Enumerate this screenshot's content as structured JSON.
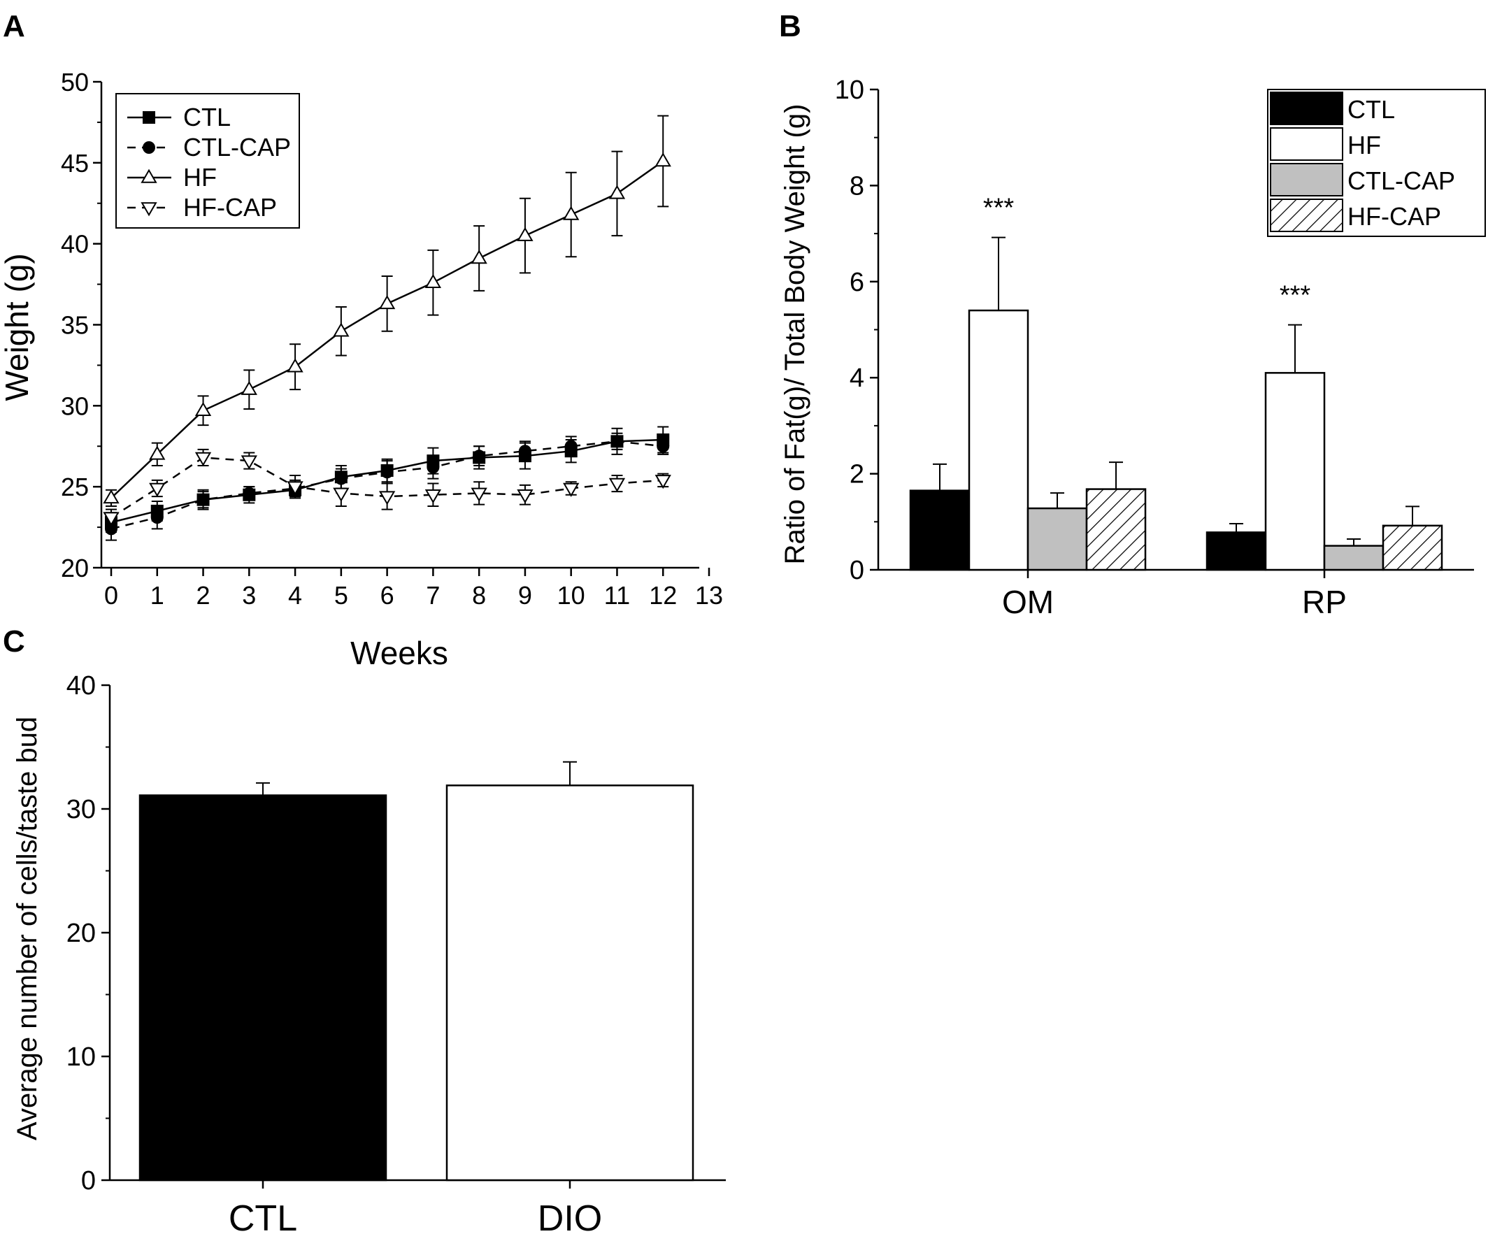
{
  "panels": [
    {
      "letter": "A"
    },
    {
      "letter": "B"
    },
    {
      "letter": "C"
    }
  ],
  "chart_data": [
    {
      "panel": "A",
      "type": "line",
      "xlabel": "Weeks",
      "ylabel": "Weight (g)",
      "xlim": [
        0,
        13
      ],
      "ylim": [
        20,
        50
      ],
      "x_ticks": [
        0,
        1,
        2,
        3,
        4,
        5,
        6,
        7,
        8,
        9,
        10,
        11,
        12,
        13
      ],
      "y_ticks": [
        20,
        25,
        30,
        35,
        40,
        45,
        50
      ],
      "legend_position": "top-left",
      "x": [
        0,
        1,
        2,
        3,
        4,
        5,
        6,
        7,
        8,
        9,
        10,
        11,
        12
      ],
      "series": [
        {
          "name": "CTL",
          "line": "solid",
          "marker": "filled-square",
          "values": [
            22.8,
            23.5,
            24.2,
            24.5,
            24.8,
            25.6,
            26.0,
            26.6,
            26.8,
            26.9,
            27.2,
            27.8,
            27.9
          ],
          "errors": [
            0.6,
            0.6,
            0.6,
            0.5,
            0.5,
            0.7,
            0.7,
            0.8,
            0.7,
            0.8,
            0.7,
            0.8,
            0.8
          ]
        },
        {
          "name": "CTL-CAP",
          "line": "dashed",
          "marker": "filled-circle",
          "values": [
            22.4,
            23.1,
            24.2,
            24.6,
            24.9,
            25.5,
            25.9,
            26.2,
            26.9,
            27.2,
            27.5,
            27.8,
            27.5
          ],
          "errors": [
            0.7,
            0.7,
            0.5,
            0.4,
            0.5,
            0.6,
            0.7,
            0.7,
            0.6,
            0.6,
            0.6,
            0.5,
            0.5
          ]
        },
        {
          "name": "HF",
          "line": "solid",
          "marker": "open-triangle-up",
          "values": [
            24.3,
            27.0,
            29.7,
            31.0,
            32.4,
            34.6,
            36.3,
            37.6,
            39.1,
            40.5,
            41.8,
            43.1,
            45.1
          ],
          "errors": [
            0.5,
            0.7,
            0.9,
            1.2,
            1.4,
            1.5,
            1.7,
            2.0,
            2.0,
            2.3,
            2.6,
            2.6,
            2.8
          ]
        },
        {
          "name": "HF-CAP",
          "line": "dashed",
          "marker": "open-triangle-down",
          "values": [
            23.1,
            24.9,
            26.8,
            26.6,
            25.0,
            24.6,
            24.4,
            24.5,
            24.6,
            24.5,
            24.9,
            25.2,
            25.4
          ],
          "errors": [
            0.5,
            0.5,
            0.5,
            0.5,
            0.7,
            0.8,
            0.8,
            0.7,
            0.7,
            0.6,
            0.4,
            0.5,
            0.4
          ]
        }
      ]
    },
    {
      "panel": "B",
      "type": "bar",
      "xlabel": "",
      "ylabel": "Ratio of Fat(g)/ Total Body Weight (g)",
      "ylim": [
        0,
        10
      ],
      "y_ticks": [
        0,
        2,
        4,
        6,
        8,
        10
      ],
      "categories": [
        "OM",
        "RP"
      ],
      "legend_position": "top-right",
      "series": [
        {
          "name": "CTL",
          "fill": "#000000",
          "pattern": "solid",
          "values": [
            1.65,
            0.78
          ],
          "errors": [
            0.55,
            0.18
          ]
        },
        {
          "name": "HF",
          "fill": "#ffffff",
          "pattern": "solid",
          "values": [
            5.4,
            4.1
          ],
          "errors": [
            1.52,
            1.0
          ]
        },
        {
          "name": "CTL-CAP",
          "fill": "#c0c0c0",
          "pattern": "solid",
          "values": [
            1.28,
            0.5
          ],
          "errors": [
            0.32,
            0.14
          ]
        },
        {
          "name": "HF-CAP",
          "fill": "#ffffff",
          "pattern": "hatched",
          "values": [
            1.68,
            0.92
          ],
          "errors": [
            0.56,
            0.4
          ]
        }
      ],
      "annotations": [
        {
          "category": "OM",
          "series": "HF",
          "text": "***"
        },
        {
          "category": "RP",
          "series": "HF",
          "text": "***"
        }
      ]
    },
    {
      "panel": "C",
      "type": "bar",
      "xlabel": "",
      "ylabel": "Average number of cells/taste bud",
      "ylim": [
        0,
        40
      ],
      "y_ticks": [
        0,
        10,
        20,
        30,
        40
      ],
      "categories": [
        "CTL",
        "DIO"
      ],
      "values": [
        31.1,
        31.9
      ],
      "errors": [
        1.0,
        1.9
      ],
      "fills": [
        "#000000",
        "#ffffff"
      ]
    }
  ]
}
